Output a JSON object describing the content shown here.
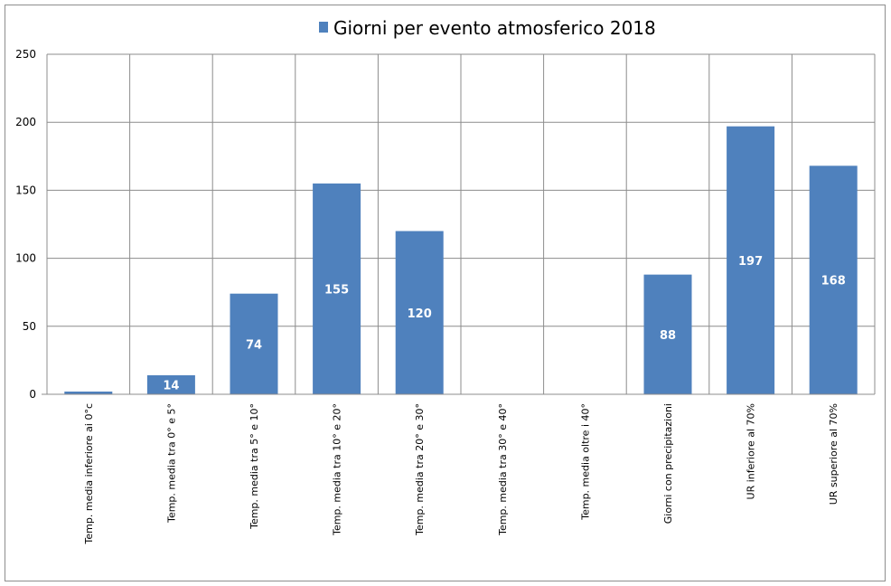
{
  "chart_data": {
    "type": "bar",
    "categories": [
      "Temp. media inferiore ai 0°c",
      "Temp. media tra 0° e 5°",
      "Temp. media tra 5° e 10°",
      "Temp. media tra 10° e 20°",
      "Temp. media tra 20° e 30°",
      "Temp. media tra 30° e 40°",
      "Temp. media oltre i 40°",
      "Giorni con precipitazioni",
      "UR inferiore al 70%",
      "UR superiore al 70%"
    ],
    "series": [
      {
        "name": "Giorni per evento atmosferico 2018",
        "values": [
          2,
          14,
          74,
          155,
          120,
          0,
          0,
          88,
          197,
          168
        ],
        "data_labels": [
          "",
          "14",
          "74",
          "155",
          "120",
          "",
          "",
          "88",
          "197",
          "168"
        ]
      }
    ],
    "ylim": [
      0,
      250
    ],
    "yticks": [
      0,
      50,
      100,
      150,
      200,
      250
    ],
    "grid": true,
    "legend_position": "top",
    "colors": {
      "bar": "#4f81bd",
      "grid": "#8c8c8c",
      "axis": "#8c8c8c"
    }
  }
}
